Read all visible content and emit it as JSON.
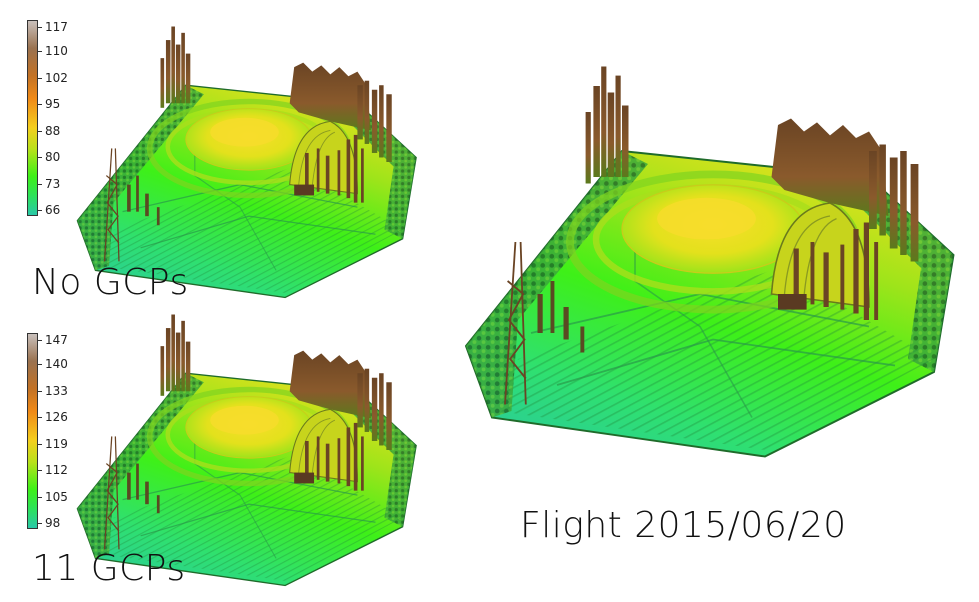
{
  "panels": [
    {
      "caption": "No GCPs",
      "colorbar_labels": [
        "117",
        "110",
        "102",
        "95",
        "88",
        "80",
        "73",
        "66"
      ]
    },
    {
      "caption": "11 GCPs",
      "colorbar_labels": [
        "147",
        "140",
        "133",
        "126",
        "119",
        "112",
        "105",
        "98"
      ]
    },
    {
      "caption": "Flight 2015/06/20"
    }
  ],
  "colors": {
    "colormap": [
      "#c9c0bc",
      "#9a7250",
      "#c27226",
      "#f08a18",
      "#f4cf1e",
      "#b9e11b",
      "#3ef018",
      "#2de25a",
      "#2ac8a8"
    ],
    "trees": "#5a3a22",
    "forest_edge": "#2b7a2e"
  }
}
